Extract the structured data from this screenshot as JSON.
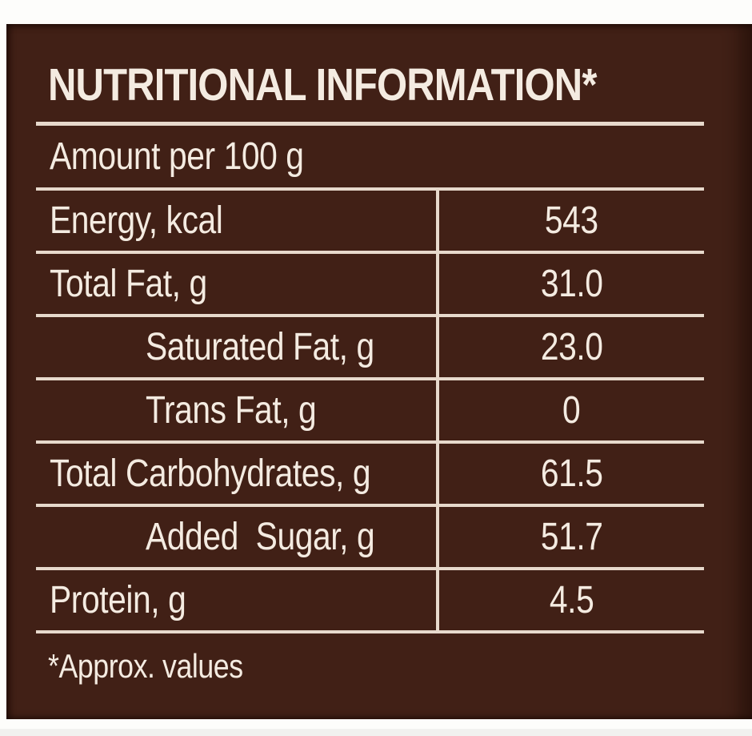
{
  "label": {
    "title": "NUTRITIONAL INFORMATION*",
    "subtitle": "Amount per 100 g",
    "rows": [
      {
        "name": "Energy, kcal",
        "value": "543",
        "indent": false
      },
      {
        "name": "Total Fat, g",
        "value": "31.0",
        "indent": false
      },
      {
        "name": "Saturated Fat, g",
        "value": "23.0",
        "indent": true
      },
      {
        "name": "Trans Fat, g",
        "value": "0",
        "indent": true
      },
      {
        "name": "Total Carbohydrates, g",
        "value": "61.5",
        "indent": false
      },
      {
        "name": "Added  Sugar, g",
        "value": "51.7",
        "indent": true
      },
      {
        "name": "Protein, g",
        "value": "4.5",
        "indent": false
      }
    ],
    "footnote": "*Approx. values",
    "colors": {
      "panel_brown": "#412016",
      "text_cream": "#f4ebe1",
      "line_cream": "#e7d9cc",
      "page_background": "#fdfdfb"
    }
  }
}
